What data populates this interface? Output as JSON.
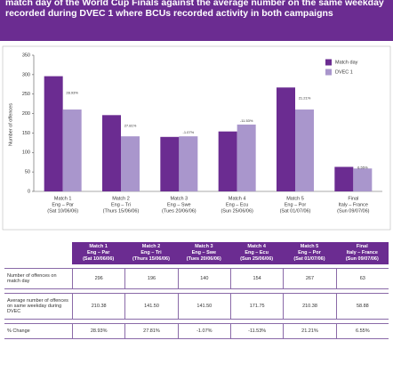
{
  "chart_data": {
    "type": "bar",
    "title": "match day of the World Cup Finals against the average number on the same weekday recorded during DVEC 1 where BCUs recorded activity in both campaigns",
    "categories": [
      [
        "Match 1",
        "Eng – Par",
        "(Sat 10/06/06)"
      ],
      [
        "Match 2",
        "Eng – Tri",
        "(Thurs 15/06/06)"
      ],
      [
        "Match 3",
        "Eng – Swe",
        "(Tues 20/06/06)"
      ],
      [
        "Match 4",
        "Eng – Ecu",
        "(Sun 25/06/06)"
      ],
      [
        "Match 5",
        "Eng – Por",
        "(Sat 01/07/06)"
      ],
      [
        "Final",
        "Italy – France",
        "(Sun 09/07/06)"
      ]
    ],
    "series": [
      {
        "name": "Match day",
        "color": "#6b2c91",
        "values": [
          296,
          196,
          140,
          154,
          267,
          63
        ]
      },
      {
        "name": "DVEC 1",
        "color": "#a996cc",
        "values": [
          210.38,
          141.5,
          141.5,
          171.75,
          210.38,
          58.88
        ]
      }
    ],
    "annotations": [
      "28.93%",
      "27.81%",
      "-1.07%",
      "-11.53%",
      "21.21%",
      "6.55%"
    ],
    "y_label": "Number of offences",
    "ylim": [
      0,
      350
    ],
    "yticks": [
      0,
      50,
      100,
      150,
      200,
      250,
      300,
      350
    ],
    "legend": "top-right"
  },
  "table": {
    "header": [
      [
        "Match 1",
        "Eng – Par",
        "(Sat 10/06/06)"
      ],
      [
        "Match 2",
        "Eng – Tri",
        "(Thurs 15/06/06)"
      ],
      [
        "Match 3",
        "Eng – Swe",
        "(Tues 20/06/06)"
      ],
      [
        "Match 4",
        "Eng – Ecu",
        "(Sun 25/06/06)"
      ],
      [
        "Match 5",
        "Eng – Por",
        "(Sat 01/07/06)"
      ],
      [
        "Final",
        "Italy – France",
        "(Sun 09/07/06)"
      ]
    ],
    "rows": [
      {
        "label": "Number of offences on match day",
        "cells": [
          "296",
          "196",
          "140",
          "154",
          "267",
          "63"
        ]
      },
      {
        "label": "Average number of offences on same weekday during DVEC",
        "cells": [
          "210.38",
          "141.50",
          "141.50",
          "171.75",
          "210.38",
          "58.88"
        ]
      },
      {
        "label": "% Change",
        "cells": [
          "28.93%",
          "27.81%",
          "-1.07%",
          "-11.53%",
          "21.21%",
          "6.55%"
        ]
      }
    ]
  }
}
